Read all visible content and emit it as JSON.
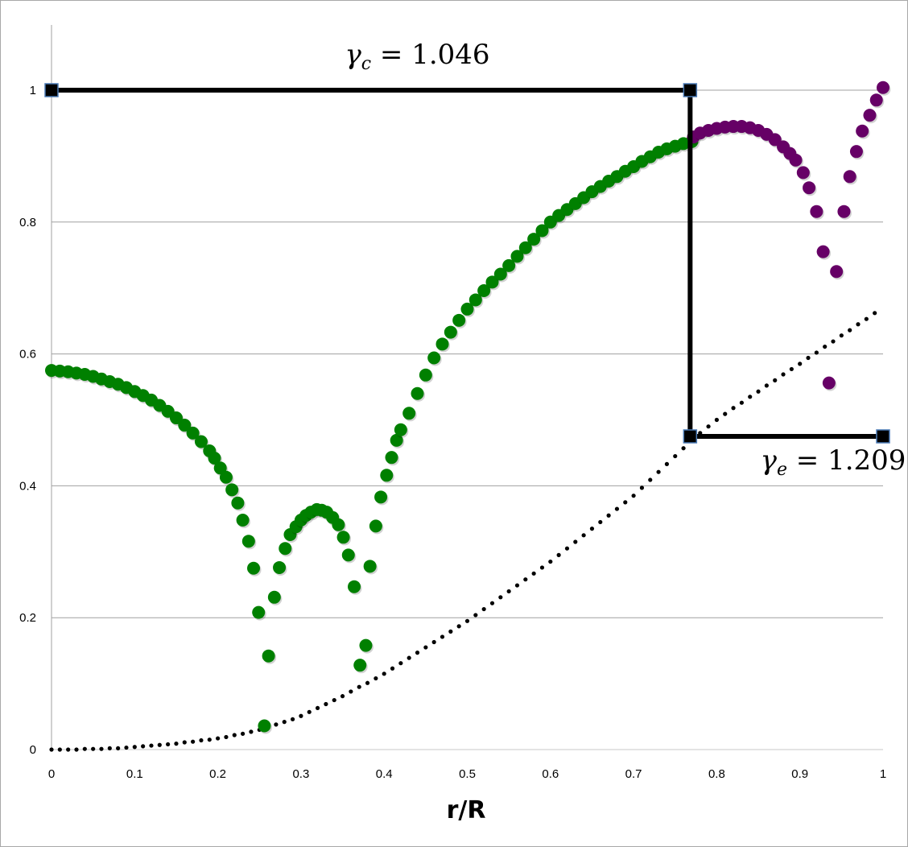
{
  "chart_data": {
    "type": "scatter",
    "title": "",
    "xlabel": "r/R",
    "ylabel": "",
    "xlim": [
      0,
      1
    ],
    "ylim": [
      0,
      1.1
    ],
    "grid": "horizontal",
    "x_ticks": [
      "0",
      "0.1",
      "0.2",
      "0.3",
      "0.4",
      "0.5",
      "0.6",
      "0.7",
      "0.8",
      "0.9",
      "1"
    ],
    "y_ticks": [
      "0",
      "0.2",
      "0.4",
      "0.6",
      "0.8",
      "1"
    ],
    "colors": {
      "green": "#008000",
      "purple": "#660066",
      "black": "#000000",
      "grid": "#a0a0a0",
      "marker_edge": "#4a7ab5"
    },
    "series": [
      {
        "name": "green",
        "color": "#008000",
        "points": [
          [
            0,
            0.575
          ],
          [
            0.01,
            0.574
          ],
          [
            0.02,
            0.573
          ],
          [
            0.03,
            0.571
          ],
          [
            0.04,
            0.569
          ],
          [
            0.05,
            0.566
          ],
          [
            0.06,
            0.562
          ],
          [
            0.07,
            0.558
          ],
          [
            0.08,
            0.554
          ],
          [
            0.09,
            0.549
          ],
          [
            0.1,
            0.543
          ],
          [
            0.11,
            0.537
          ],
          [
            0.12,
            0.53
          ],
          [
            0.13,
            0.522
          ],
          [
            0.14,
            0.513
          ],
          [
            0.15,
            0.503
          ],
          [
            0.16,
            0.492
          ],
          [
            0.17,
            0.48
          ],
          [
            0.18,
            0.467
          ],
          [
            0.19,
            0.453
          ],
          [
            0.196,
            0.442
          ],
          [
            0.203,
            0.427
          ],
          [
            0.21,
            0.413
          ],
          [
            0.217,
            0.394
          ],
          [
            0.224,
            0.374
          ],
          [
            0.23,
            0.348
          ],
          [
            0.237,
            0.316
          ],
          [
            0.243,
            0.275
          ],
          [
            0.249,
            0.208
          ],
          [
            0.256,
            0.036
          ],
          [
            0.261,
            0.142
          ],
          [
            0.268,
            0.231
          ],
          [
            0.274,
            0.276
          ],
          [
            0.281,
            0.305
          ],
          [
            0.287,
            0.326
          ],
          [
            0.294,
            0.338
          ],
          [
            0.3,
            0.348
          ],
          [
            0.306,
            0.355
          ],
          [
            0.312,
            0.36
          ],
          [
            0.319,
            0.364
          ],
          [
            0.325,
            0.363
          ],
          [
            0.331,
            0.36
          ],
          [
            0.338,
            0.352
          ],
          [
            0.345,
            0.341
          ],
          [
            0.351,
            0.322
          ],
          [
            0.357,
            0.295
          ],
          [
            0.364,
            0.247
          ],
          [
            0.371,
            0.128
          ],
          [
            0.378,
            0.158
          ],
          [
            0.383,
            0.278
          ],
          [
            0.39,
            0.339
          ],
          [
            0.396,
            0.383
          ],
          [
            0.403,
            0.416
          ],
          [
            0.409,
            0.443
          ],
          [
            0.415,
            0.469
          ],
          [
            0.42,
            0.485
          ],
          [
            0.43,
            0.51
          ],
          [
            0.44,
            0.54
          ],
          [
            0.45,
            0.568
          ],
          [
            0.46,
            0.594
          ],
          [
            0.47,
            0.615
          ],
          [
            0.48,
            0.633
          ],
          [
            0.49,
            0.651
          ],
          [
            0.5,
            0.668
          ],
          [
            0.51,
            0.682
          ],
          [
            0.52,
            0.696
          ],
          [
            0.53,
            0.709
          ],
          [
            0.54,
            0.721
          ],
          [
            0.55,
            0.734
          ],
          [
            0.56,
            0.748
          ],
          [
            0.57,
            0.761
          ],
          [
            0.58,
            0.774
          ],
          [
            0.59,
            0.787
          ],
          [
            0.6,
            0.8
          ],
          [
            0.61,
            0.81
          ],
          [
            0.62,
            0.819
          ],
          [
            0.63,
            0.828
          ],
          [
            0.64,
            0.837
          ],
          [
            0.65,
            0.846
          ],
          [
            0.66,
            0.854
          ],
          [
            0.67,
            0.862
          ],
          [
            0.68,
            0.869
          ],
          [
            0.69,
            0.877
          ],
          [
            0.7,
            0.884
          ],
          [
            0.71,
            0.892
          ],
          [
            0.72,
            0.899
          ],
          [
            0.73,
            0.906
          ],
          [
            0.74,
            0.911
          ],
          [
            0.75,
            0.915
          ],
          [
            0.76,
            0.919
          ],
          [
            0.77,
            0.922
          ]
        ]
      },
      {
        "name": "purple",
        "color": "#660066",
        "points": [
          [
            0.772,
            0.929
          ],
          [
            0.78,
            0.935
          ],
          [
            0.79,
            0.939
          ],
          [
            0.8,
            0.942
          ],
          [
            0.81,
            0.944
          ],
          [
            0.82,
            0.945
          ],
          [
            0.83,
            0.945
          ],
          [
            0.84,
            0.943
          ],
          [
            0.85,
            0.939
          ],
          [
            0.86,
            0.933
          ],
          [
            0.87,
            0.925
          ],
          [
            0.88,
            0.914
          ],
          [
            0.888,
            0.904
          ],
          [
            0.895,
            0.894
          ],
          [
            0.904,
            0.875
          ],
          [
            0.911,
            0.852
          ],
          [
            0.92,
            0.816
          ],
          [
            0.928,
            0.755
          ],
          [
            0.935,
            0.556
          ],
          [
            0.944,
            0.725
          ],
          [
            0.953,
            0.816
          ],
          [
            0.96,
            0.869
          ],
          [
            0.968,
            0.907
          ],
          [
            0.975,
            0.938
          ],
          [
            0.984,
            0.962
          ],
          [
            0.992,
            0.985
          ],
          [
            1.0,
            1.004
          ]
        ]
      },
      {
        "name": "black-dotted",
        "color": "#000000",
        "x_start": 0,
        "x_step": 0.01,
        "y": [
          0,
          0,
          0,
          0,
          0.001,
          0.001,
          0.001,
          0.002,
          0.002,
          0.003,
          0.004,
          0.005,
          0.006,
          0.007,
          0.008,
          0.009,
          0.011,
          0.012,
          0.014,
          0.015,
          0.017,
          0.019,
          0.022,
          0.024,
          0.027,
          0.03,
          0.034,
          0.038,
          0.042,
          0.046,
          0.051,
          0.057,
          0.063,
          0.069,
          0.075,
          0.081,
          0.088,
          0.095,
          0.101,
          0.108,
          0.115,
          0.123,
          0.131,
          0.139,
          0.147,
          0.155,
          0.163,
          0.171,
          0.179,
          0.187,
          0.195,
          0.204,
          0.213,
          0.222,
          0.231,
          0.24,
          0.249,
          0.258,
          0.267,
          0.276,
          0.285,
          0.295,
          0.305,
          0.315,
          0.325,
          0.335,
          0.345,
          0.355,
          0.365,
          0.375,
          0.385,
          0.397,
          0.409,
          0.421,
          0.433,
          0.445,
          0.457,
          0.47,
          0.48,
          0.49,
          0.5,
          0.509,
          0.518,
          0.526,
          0.535,
          0.543,
          0.552,
          0.56,
          0.569,
          0.577,
          0.585,
          0.594,
          0.602,
          0.611,
          0.619,
          0.628,
          0.636,
          0.645,
          0.653,
          0.662
        ]
      }
    ],
    "guide_path": [
      [
        0,
        1
      ],
      [
        0.768,
        1
      ],
      [
        0.768,
        0.475
      ],
      [
        1,
        0.475
      ]
    ],
    "annotations": [
      {
        "symbol": "γ",
        "sub": "c",
        "value": " = 1.046",
        "at": [
          0.44,
          1.04
        ]
      },
      {
        "symbol": "γ",
        "sub": "e",
        "value": " = 1.209",
        "at": [
          0.94,
          0.425
        ]
      }
    ]
  }
}
